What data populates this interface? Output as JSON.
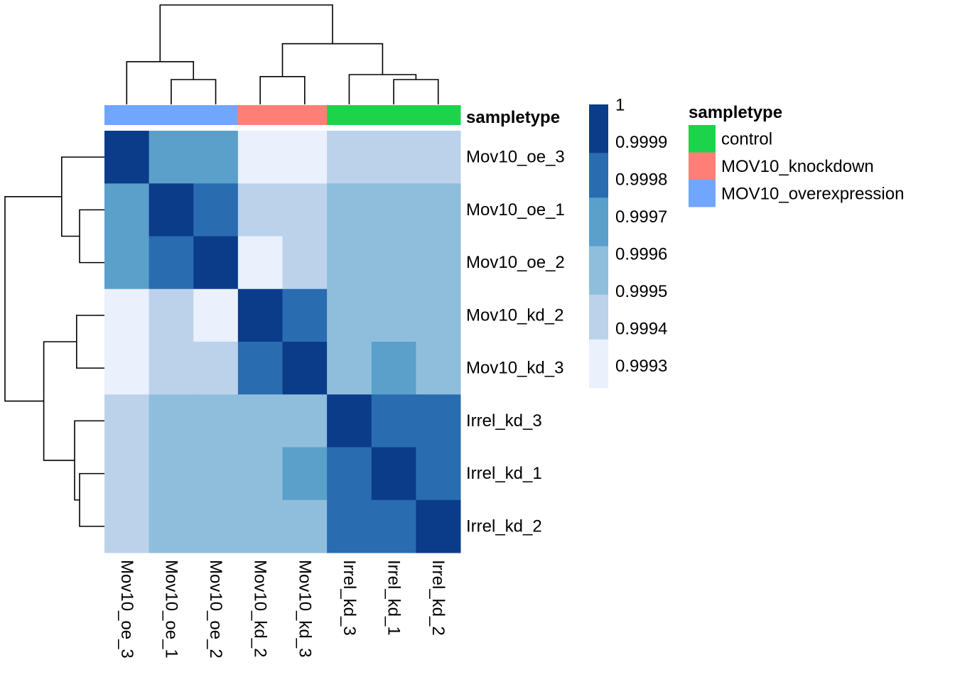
{
  "chart_data": {
    "type": "heatmap",
    "rows": [
      "Mov10_oe_3",
      "Mov10_oe_1",
      "Mov10_oe_2",
      "Mov10_kd_2",
      "Mov10_kd_3",
      "Irrel_kd_3",
      "Irrel_kd_1",
      "Irrel_kd_2"
    ],
    "columns": [
      "Mov10_oe_3",
      "Mov10_oe_1",
      "Mov10_oe_2",
      "Mov10_kd_2",
      "Mov10_kd_3",
      "Irrel_kd_3",
      "Irrel_kd_1",
      "Irrel_kd_2"
    ],
    "values": [
      [
        1,
        0.9997,
        0.9997,
        0.9993,
        0.9993,
        0.99945,
        0.99945,
        0.99945
      ],
      [
        0.9997,
        1,
        0.9998,
        0.99945,
        0.99945,
        0.9996,
        0.9996,
        0.9996
      ],
      [
        0.9997,
        0.9998,
        1,
        0.9993,
        0.99945,
        0.9996,
        0.9996,
        0.9996
      ],
      [
        0.9993,
        0.99945,
        0.9993,
        1,
        0.9998,
        0.9996,
        0.9996,
        0.9996
      ],
      [
        0.9993,
        0.99945,
        0.99945,
        0.9998,
        1,
        0.9996,
        0.9997,
        0.9996
      ],
      [
        0.99945,
        0.9996,
        0.9996,
        0.9996,
        0.9996,
        1,
        0.9998,
        0.9998
      ],
      [
        0.99945,
        0.9996,
        0.9996,
        0.9996,
        0.9997,
        0.9998,
        1,
        0.9998
      ],
      [
        0.99945,
        0.9996,
        0.9996,
        0.9996,
        0.9996,
        0.9998,
        0.9998,
        1
      ]
    ],
    "color_scale": {
      "breaks": [
        1.0,
        0.99987,
        0.99975,
        0.99962,
        0.99949,
        0.99937,
        0.99924
      ],
      "colors": [
        "#0B3C8A",
        "#2A6CB0",
        "#5B9FCB",
        "#8FBEDC",
        "#BCD2EB",
        "#EAF0FC"
      ],
      "tick_labels": [
        "1",
        "0.9999",
        "0.9998",
        "0.9997",
        "0.9996",
        "0.9995",
        "0.9994",
        "0.9993"
      ],
      "tick_values": [
        1,
        0.9999,
        0.9998,
        0.9997,
        0.9996,
        0.9995,
        0.9994,
        0.9993
      ]
    },
    "annotation": {
      "title": "sampletype",
      "column_groups": [
        "MOV10_overexpression",
        "MOV10_overexpression",
        "MOV10_overexpression",
        "MOV10_knockdown",
        "MOV10_knockdown",
        "control",
        "control",
        "control"
      ],
      "legend": [
        {
          "label": "control",
          "color": "#1DD34B"
        },
        {
          "label": "MOV10_knockdown",
          "color": "#FF7F76"
        },
        {
          "label": "MOV10_overexpression",
          "color": "#71A6FF"
        }
      ]
    },
    "dendrogram": {
      "merges": [
        {
          "left": 1,
          "right": 2,
          "height": 0.25
        },
        {
          "left": 0,
          "right": "m0",
          "height": 0.43
        },
        {
          "left": 3,
          "right": 4,
          "height": 0.28
        },
        {
          "left": 6,
          "right": 7,
          "height": 0.25
        },
        {
          "left": 5,
          "right": "m3",
          "height": 0.3
        },
        {
          "left": "m2",
          "right": "m4",
          "height": 0.61
        },
        {
          "left": "m1",
          "right": "m5",
          "height": 1.0
        }
      ]
    }
  }
}
